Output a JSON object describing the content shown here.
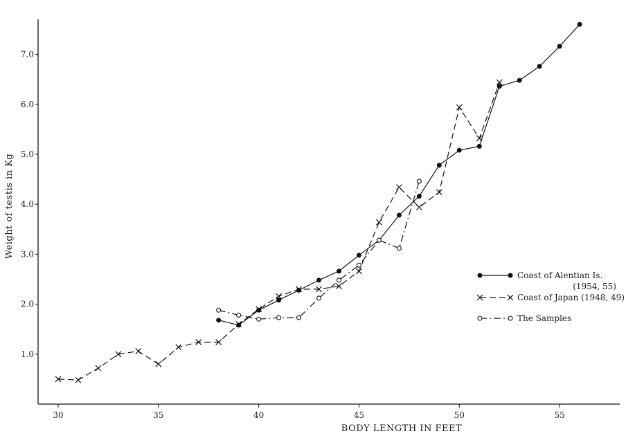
{
  "chart_data": {
    "type": "line",
    "title": "",
    "xlabel": "BODY LENGTH IN FEET",
    "ylabel": "Weight of testis in Kg",
    "xlim": [
      29,
      58
    ],
    "ylim": [
      0,
      7.7
    ],
    "xticks": [
      30,
      35,
      40,
      45,
      50,
      55
    ],
    "yticks": [
      1.0,
      2.0,
      3.0,
      4.0,
      5.0,
      6.0,
      7.0
    ],
    "grid": false,
    "legend_position": "right",
    "series": [
      {
        "name": "Coast of Alentian Is. (1954, 55)",
        "legend_lines": [
          "Coast of Alentian Is.",
          "(1954, 55)"
        ],
        "style": "solid",
        "marker": "filled-circle",
        "x": [
          38,
          39,
          40,
          41,
          42,
          43,
          44,
          45,
          46,
          47,
          48,
          49,
          50,
          51,
          52,
          53,
          54,
          55,
          56
        ],
        "y": [
          1.68,
          1.58,
          1.88,
          2.08,
          2.28,
          2.48,
          2.66,
          2.98,
          3.28,
          3.78,
          4.16,
          4.78,
          5.08,
          5.16,
          6.36,
          6.48,
          6.76,
          7.16,
          7.6
        ]
      },
      {
        "name": "Coast of Japan (1948, 49)",
        "legend_lines": [
          "Coast of Japan (1948, 49)"
        ],
        "style": "dashed",
        "marker": "x",
        "x": [
          30,
          31,
          32,
          33,
          34,
          35,
          36,
          37,
          38,
          39,
          40,
          41,
          42,
          43,
          44,
          45,
          46,
          47,
          48,
          49,
          50,
          51,
          52
        ],
        "y": [
          0.5,
          0.48,
          0.72,
          1.0,
          1.06,
          0.8,
          1.14,
          1.24,
          1.24,
          1.6,
          1.9,
          2.16,
          2.3,
          2.3,
          2.36,
          2.66,
          3.64,
          4.34,
          3.94,
          4.24,
          5.94,
          5.32,
          6.44
        ]
      },
      {
        "name": "The Samples",
        "legend_lines": [
          "The Samples"
        ],
        "style": "dashdot",
        "marker": "open-circle",
        "x": [
          38,
          39,
          40,
          41,
          42,
          43,
          44,
          45,
          46,
          47,
          48
        ],
        "y": [
          1.88,
          1.78,
          1.7,
          1.73,
          1.73,
          2.12,
          2.48,
          2.78,
          3.28,
          3.12,
          4.46
        ]
      }
    ]
  }
}
